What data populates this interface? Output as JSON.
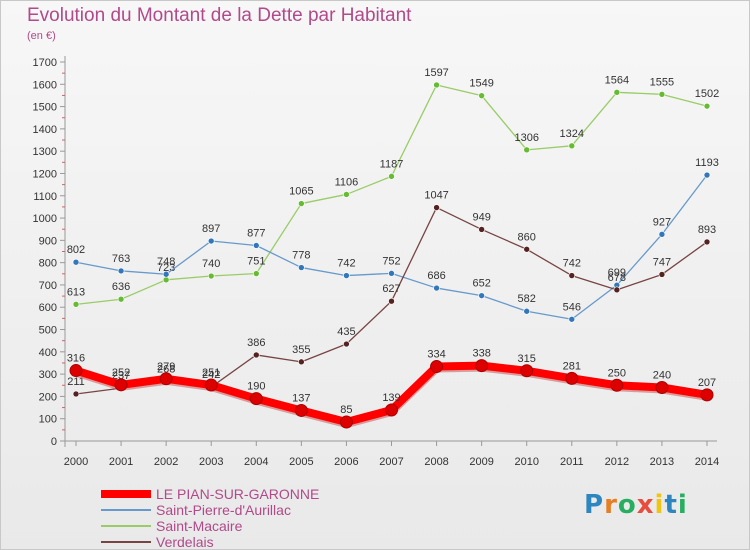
{
  "header": {
    "title": "Evolution du Montant de la Dette par Habitant",
    "subtitle": "(en €)"
  },
  "logo": {
    "text": "Proxiti",
    "letter_colors": [
      "#2e86c1",
      "#e67e22",
      "#27ae60",
      "#e74c3c",
      "#f1c40f",
      "#2e86c1",
      "#27ae60"
    ]
  },
  "chart_data": {
    "type": "line",
    "title": "Evolution du Montant de la Dette par Habitant",
    "subtitle": "(en €)",
    "xlabel": "",
    "ylabel": "",
    "x": [
      "2000",
      "2001",
      "2002",
      "2003",
      "2004",
      "2005",
      "2006",
      "2007",
      "2008",
      "2009",
      "2010",
      "2011",
      "2012",
      "2013",
      "2014"
    ],
    "yticks": [
      "0",
      "100",
      "200",
      "300",
      "400",
      "500",
      "600",
      "700",
      "800",
      "900",
      "1000",
      "1100",
      "1200",
      "1300",
      "1400",
      "1500",
      "1600",
      "1700"
    ],
    "ylim": [
      0,
      1700
    ],
    "grid": false,
    "legend_position": "bottom-left",
    "series": [
      {
        "name": "Saint-Macaire",
        "color": "#99cc66",
        "marker": "#66bb33",
        "values": [
          613,
          636,
          723,
          740,
          751,
          1065,
          1106,
          1187,
          1597,
          1549,
          1306,
          1324,
          1564,
          1555,
          1502
        ]
      },
      {
        "name": "Saint-Pierre-d'Aurillac",
        "color": "#6699cc",
        "marker": "#3377bb",
        "values": [
          802,
          763,
          748,
          897,
          877,
          778,
          742,
          752,
          686,
          652,
          582,
          546,
          699,
          927,
          1193
        ]
      },
      {
        "name": "Verdelais",
        "color": "#774444",
        "marker": "#552222",
        "values": [
          211,
          237,
          268,
          242,
          386,
          355,
          435,
          627,
          1047,
          949,
          860,
          742,
          678,
          747,
          893
        ]
      },
      {
        "name": "LE PIAN-SUR-GARONNE",
        "color": "#ff0000",
        "marker": "#dd0000",
        "values": [
          316,
          252,
          279,
          251,
          190,
          137,
          85,
          139,
          334,
          338,
          315,
          281,
          250,
          240,
          207
        ]
      }
    ],
    "legend_order": [
      "LE PIAN-SUR-GARONNE",
      "Saint-Pierre-d'Aurillac",
      "Saint-Macaire",
      "Verdelais"
    ]
  }
}
